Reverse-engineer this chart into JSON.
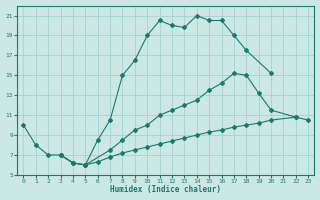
{
  "xlabel": "Humidex (Indice chaleur)",
  "xlim": [
    -0.5,
    23.5
  ],
  "ylim": [
    5,
    22
  ],
  "xticks": [
    0,
    1,
    2,
    3,
    4,
    5,
    6,
    7,
    8,
    9,
    10,
    11,
    12,
    13,
    14,
    15,
    16,
    17,
    18,
    19,
    20,
    21,
    22,
    23
  ],
  "yticks": [
    5,
    7,
    9,
    11,
    13,
    15,
    17,
    19,
    21
  ],
  "bg_color": "#cce8e4",
  "grid_color": "#9ecece",
  "line_color": "#1a7a6e",
  "line1_x": [
    0,
    1,
    2,
    3,
    4,
    5,
    6,
    7,
    8,
    9,
    10,
    11,
    12,
    13,
    14,
    15,
    16,
    17,
    18,
    20
  ],
  "line1_y": [
    10.0,
    8.0,
    7.0,
    7.0,
    6.2,
    6.0,
    8.5,
    10.5,
    15.0,
    16.5,
    19.0,
    20.5,
    20.0,
    19.8,
    21.0,
    20.5,
    20.5,
    19.0,
    17.5,
    15.2
  ],
  "line2_x": [
    3,
    4,
    5,
    7,
    8,
    9,
    10,
    11,
    12,
    13,
    14,
    15,
    16,
    17,
    18,
    19,
    20,
    22
  ],
  "line2_y": [
    7.0,
    6.2,
    6.0,
    7.5,
    8.5,
    9.5,
    10.0,
    11.0,
    11.5,
    12.0,
    12.5,
    13.5,
    14.2,
    15.2,
    15.0,
    13.2,
    11.5,
    10.8
  ],
  "line3_x": [
    3,
    4,
    5,
    6,
    7,
    8,
    9,
    10,
    11,
    12,
    13,
    14,
    15,
    16,
    17,
    18,
    19,
    20,
    22,
    23
  ],
  "line3_y": [
    7.0,
    6.2,
    6.0,
    6.3,
    6.8,
    7.2,
    7.5,
    7.8,
    8.1,
    8.4,
    8.7,
    9.0,
    9.3,
    9.5,
    9.8,
    10.0,
    10.2,
    10.5,
    10.8,
    10.5
  ]
}
